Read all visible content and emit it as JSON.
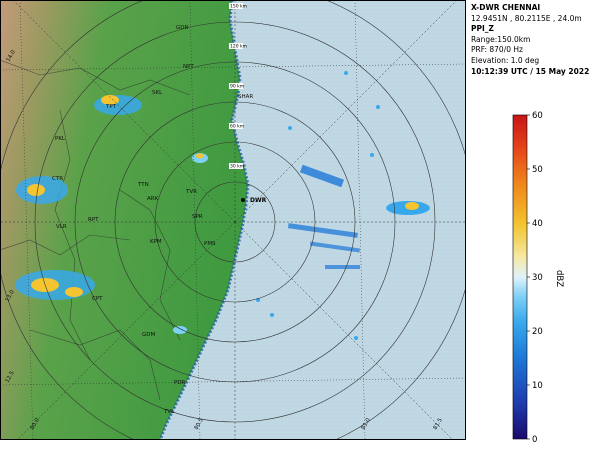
{
  "header": {
    "station": "X-DWR CHENNAI",
    "location": "12.9451N , 80.2115E , 24.0m",
    "product": "PPI_Z",
    "range": "Range:150.0km",
    "prf": "PRF: 870/0 Hz",
    "elevation": "Elevation: 1.0 deg",
    "timestamp": "10:12:39 UTC / 15 May 2022"
  },
  "colorbar": {
    "label": "dBZ",
    "ticks": [
      "0",
      "10",
      "20",
      "30",
      "40",
      "50",
      "60"
    ],
    "min": 0,
    "max": 60,
    "colors": [
      "#1a0a6b",
      "#1f3fb3",
      "#1e78d8",
      "#38a8ec",
      "#7fd0f5",
      "#dff2fb",
      "#f5e9a5",
      "#f4c531",
      "#f08a1b",
      "#e4431a",
      "#c61515"
    ]
  },
  "map": {
    "range_ring_labels": [
      "150 km",
      "120 km",
      "90 km",
      "60 km",
      "30 km"
    ],
    "radar_label": "DWR",
    "longitude_labels": [
      "80.0",
      "80.5",
      "81.0",
      "81.5"
    ],
    "latitude_labels": [
      "12.5",
      "13.0",
      "14.0"
    ],
    "place_labels": [
      {
        "text": "GDR"
      },
      {
        "text": "NPT"
      },
      {
        "text": "SKL"
      },
      {
        "text": "TPT"
      },
      {
        "text": "SHAR"
      },
      {
        "text": "PKL"
      },
      {
        "text": "CTR"
      },
      {
        "text": "TTN"
      },
      {
        "text": "ARK"
      },
      {
        "text": "TVR"
      },
      {
        "text": "RPT"
      },
      {
        "text": "VLR"
      },
      {
        "text": "SPR"
      },
      {
        "text": "KPM"
      },
      {
        "text": "PMS"
      },
      {
        "text": "CPT"
      },
      {
        "text": "GDM"
      },
      {
        "text": "PDR"
      },
      {
        "text": "TVL"
      }
    ],
    "colors": {
      "sea": "#c0d8e4",
      "land_low": "#3f9a40",
      "land_high": "#c49a7a",
      "grid": "#333333"
    }
  }
}
